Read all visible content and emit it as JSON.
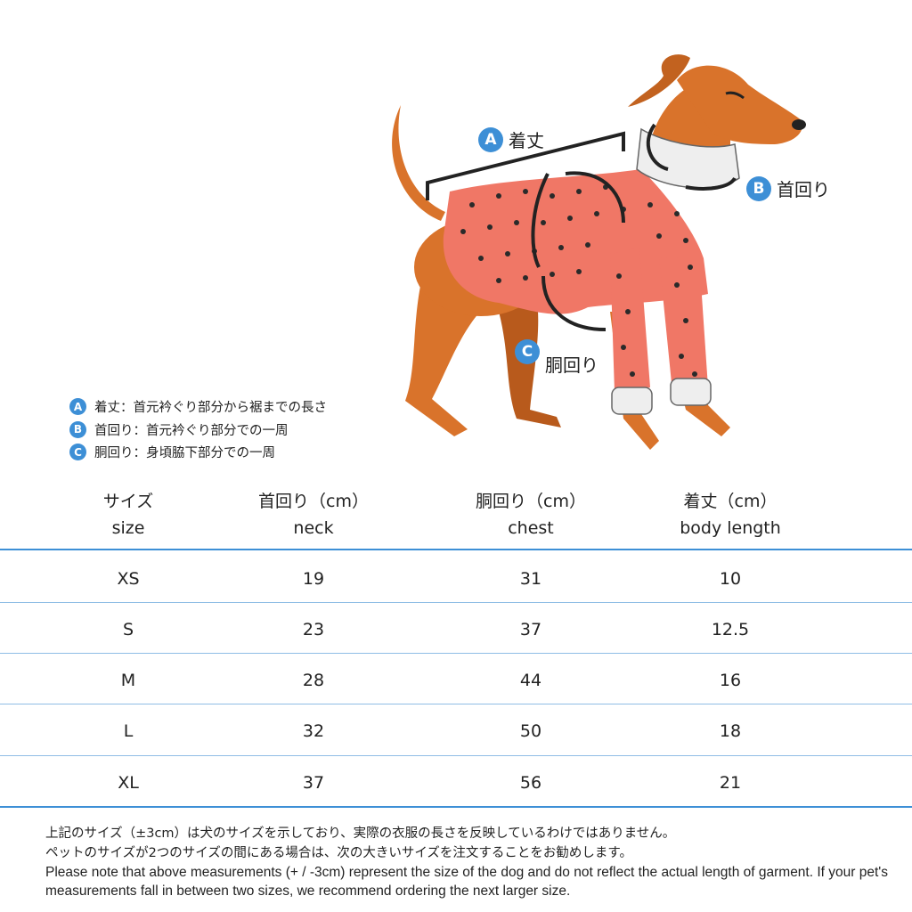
{
  "labels": {
    "a": {
      "letter": "A",
      "text": "着丈"
    },
    "b": {
      "letter": "B",
      "text": "首回り"
    },
    "c": {
      "letter": "C",
      "text": "胴回り"
    }
  },
  "legend": [
    {
      "letter": "A",
      "text": "着丈：首元衿ぐり部分から裾までの長さ"
    },
    {
      "letter": "B",
      "text": "首回り：首元衿ぐり部分での一周"
    },
    {
      "letter": "C",
      "text": "胴回り：身頃脇下部分での一周"
    }
  ],
  "table": {
    "headers": [
      {
        "jp": "サイズ",
        "en": "size"
      },
      {
        "jp": "首回り（cm）",
        "en": "neck"
      },
      {
        "jp": "胴回り（cm）",
        "en": "chest"
      },
      {
        "jp": "着丈（cm）",
        "en": "body length"
      }
    ],
    "rows": [
      [
        "XS",
        "19",
        "31",
        "10"
      ],
      [
        "S",
        "23",
        "37",
        "12.5"
      ],
      [
        "M",
        "28",
        "44",
        "16"
      ],
      [
        "L",
        "32",
        "50",
        "18"
      ],
      [
        "XL",
        "37",
        "56",
        "21"
      ]
    ]
  },
  "notes": {
    "jp1": "上記のサイズ（±3cm）は犬のサイズを示しており、実際の衣服の長さを反映しているわけではありません。",
    "jp2": "ペットのサイズが2つのサイズの間にある場合は、次の大きいサイズを注文することをお勧めします。",
    "en": "Please note that above measurements (+ / -3cm) represent the size of the dog and do not reflect the actual length of garment. If your pet's measurements fall in between two sizes, we recommend ordering the next larger size."
  },
  "colors": {
    "accent": "#3d8fd6",
    "dog": "#d9732b",
    "sweater": "#f07766"
  }
}
